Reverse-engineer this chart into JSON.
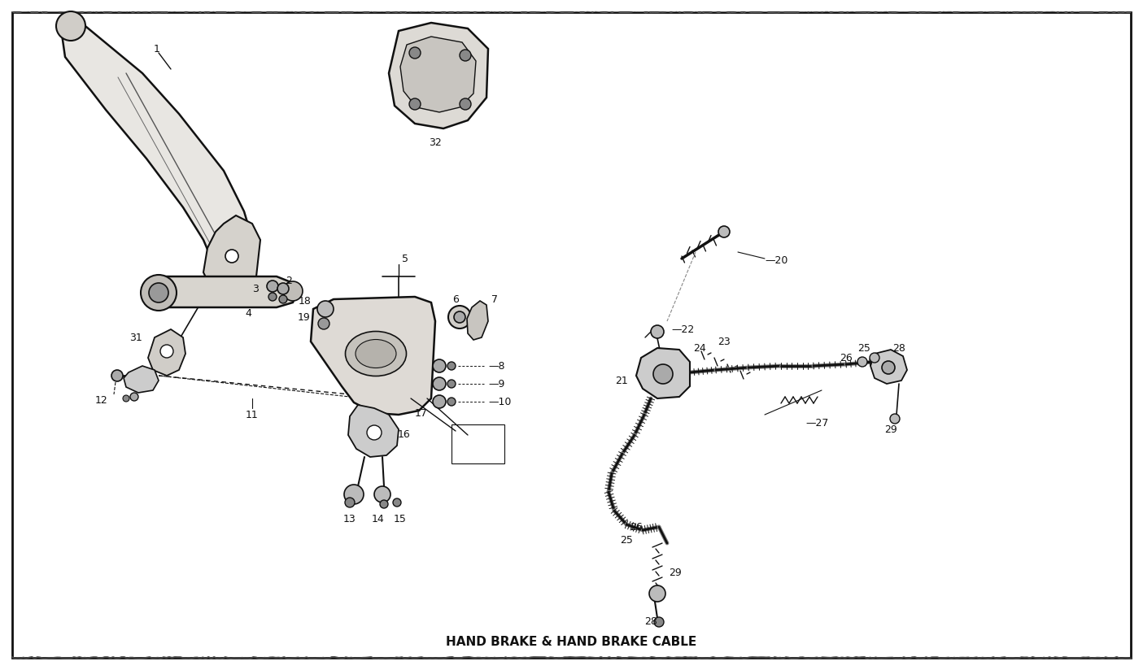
{
  "title": "HAND BRAKE & HAND BRAKE CABLE",
  "bg_color": "#ffffff",
  "border_color": "#111111",
  "fig_width": 14.05,
  "fig_height": 8.24,
  "dpi": 100
}
